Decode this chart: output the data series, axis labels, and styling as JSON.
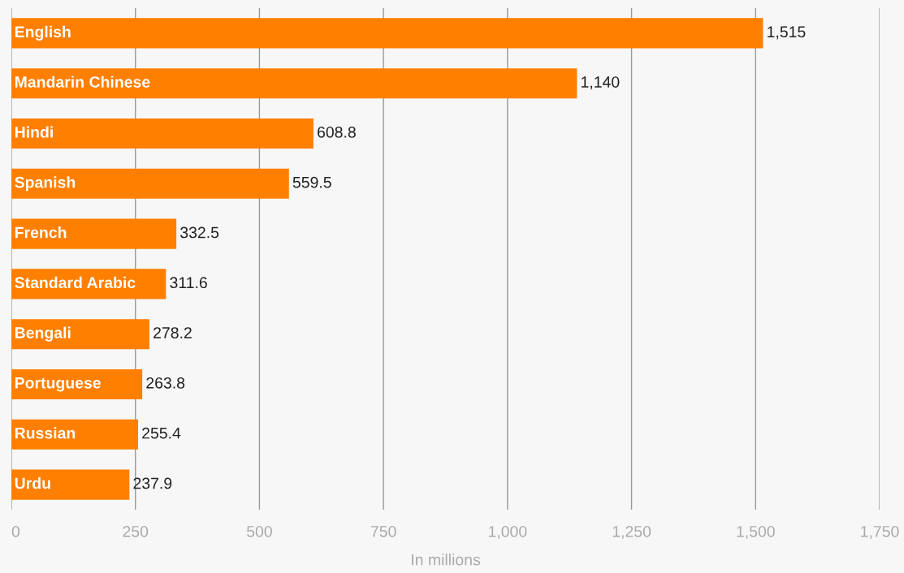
{
  "chart_data": {
    "type": "bar",
    "orientation": "horizontal",
    "xlabel": "In millions",
    "categories": [
      "English",
      "Mandarin Chinese",
      "Hindi",
      "Spanish",
      "French",
      "Standard Arabic",
      "Bengali",
      "Portuguese",
      "Russian",
      "Urdu"
    ],
    "values": [
      1515,
      1140,
      608.8,
      559.5,
      332.5,
      311.6,
      278.2,
      263.8,
      255.4,
      237.9
    ],
    "value_labels": [
      "1,515",
      "1,140",
      "608.8",
      "559.5",
      "332.5",
      "311.6",
      "278.2",
      "263.8",
      "255.4",
      "237.9"
    ],
    "color": "#ff7f00",
    "xlim": [
      0,
      1750
    ],
    "xticks": [
      0,
      250,
      500,
      750,
      {
        "value": 1000,
        "label": "1,000"
      },
      {
        "value": 1250,
        "label": "1,250"
      },
      {
        "value": 1500,
        "label": "1,500"
      },
      {
        "value": 1750,
        "label": "1,750"
      }
    ],
    "grid": "x"
  }
}
